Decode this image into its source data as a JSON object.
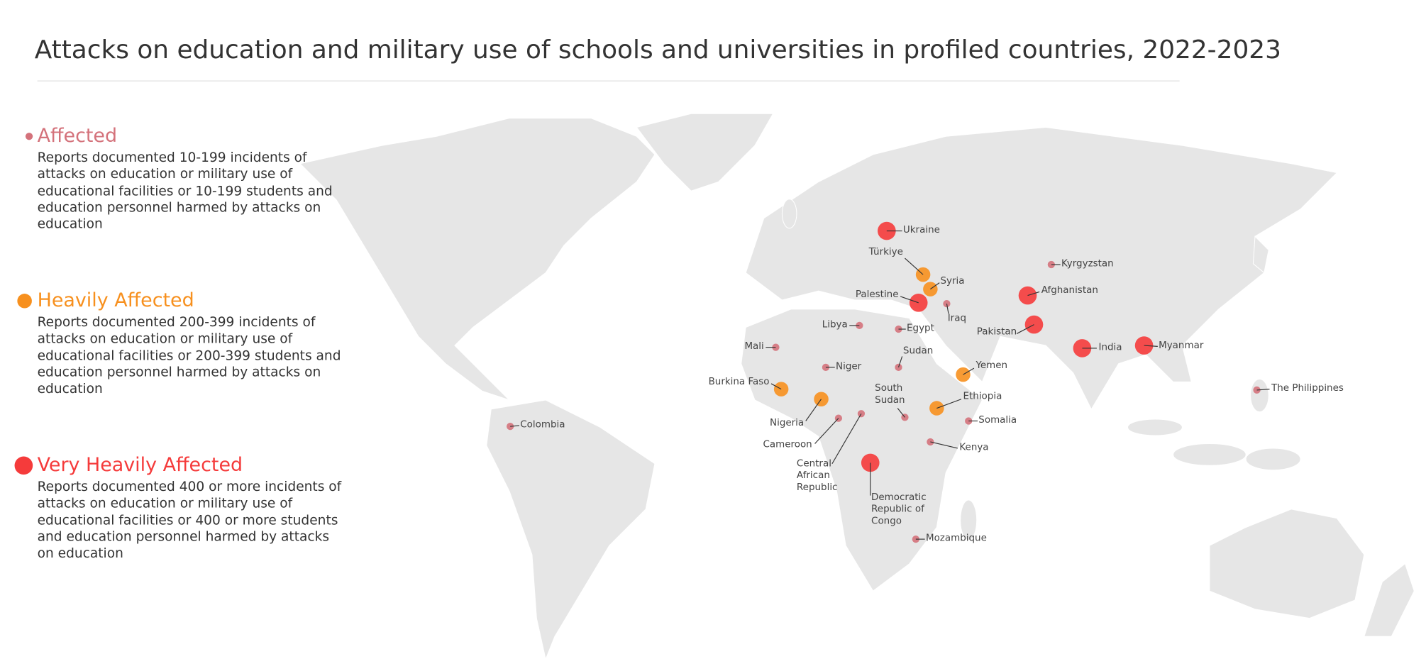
{
  "title": "Attacks on education and military use of schools and universities in profiled countries, 2022-2023",
  "legend": [
    {
      "label": "Affected",
      "color": "#d4727b",
      "description": "Reports documented 10-199 incidents of attacks on education or military use of educational facilities or 10-199 students and education personnel harmed by attacks on education",
      "countries": [
        "Kyrgyzstan",
        "Iraq",
        "Libya",
        "Egypt",
        "Mali",
        "Sudan",
        "Niger",
        "South Sudan",
        "Somalia",
        "Kenya",
        "Cameroon",
        "Central African Republic",
        "Mozambique",
        "Colombia",
        "The Philippines"
      ]
    },
    {
      "label": "Heavily Affected",
      "color": "#f7901e",
      "description": "Reports documented 200-399 incidents of attacks on education or military use of educational facilities or 200-399 students and education personnel harmed by attacks on education",
      "countries": [
        "Türkiye",
        "Syria",
        "Burkina Faso",
        "Nigeria",
        "Yemen",
        "Ethiopia"
      ]
    },
    {
      "label": "Very Heavily Affected",
      "color": "#f53b3b",
      "description": "Reports documented 400 or more incidents of attacks on education or military use of educational facilities or 400 or more students and education personnel harmed by attacks on education",
      "countries": [
        "Ukraine",
        "Palestine",
        "Afghanistan",
        "Pakistan",
        "India",
        "Myanmar",
        "Democratic Republic of Congo"
      ]
    }
  ]
}
